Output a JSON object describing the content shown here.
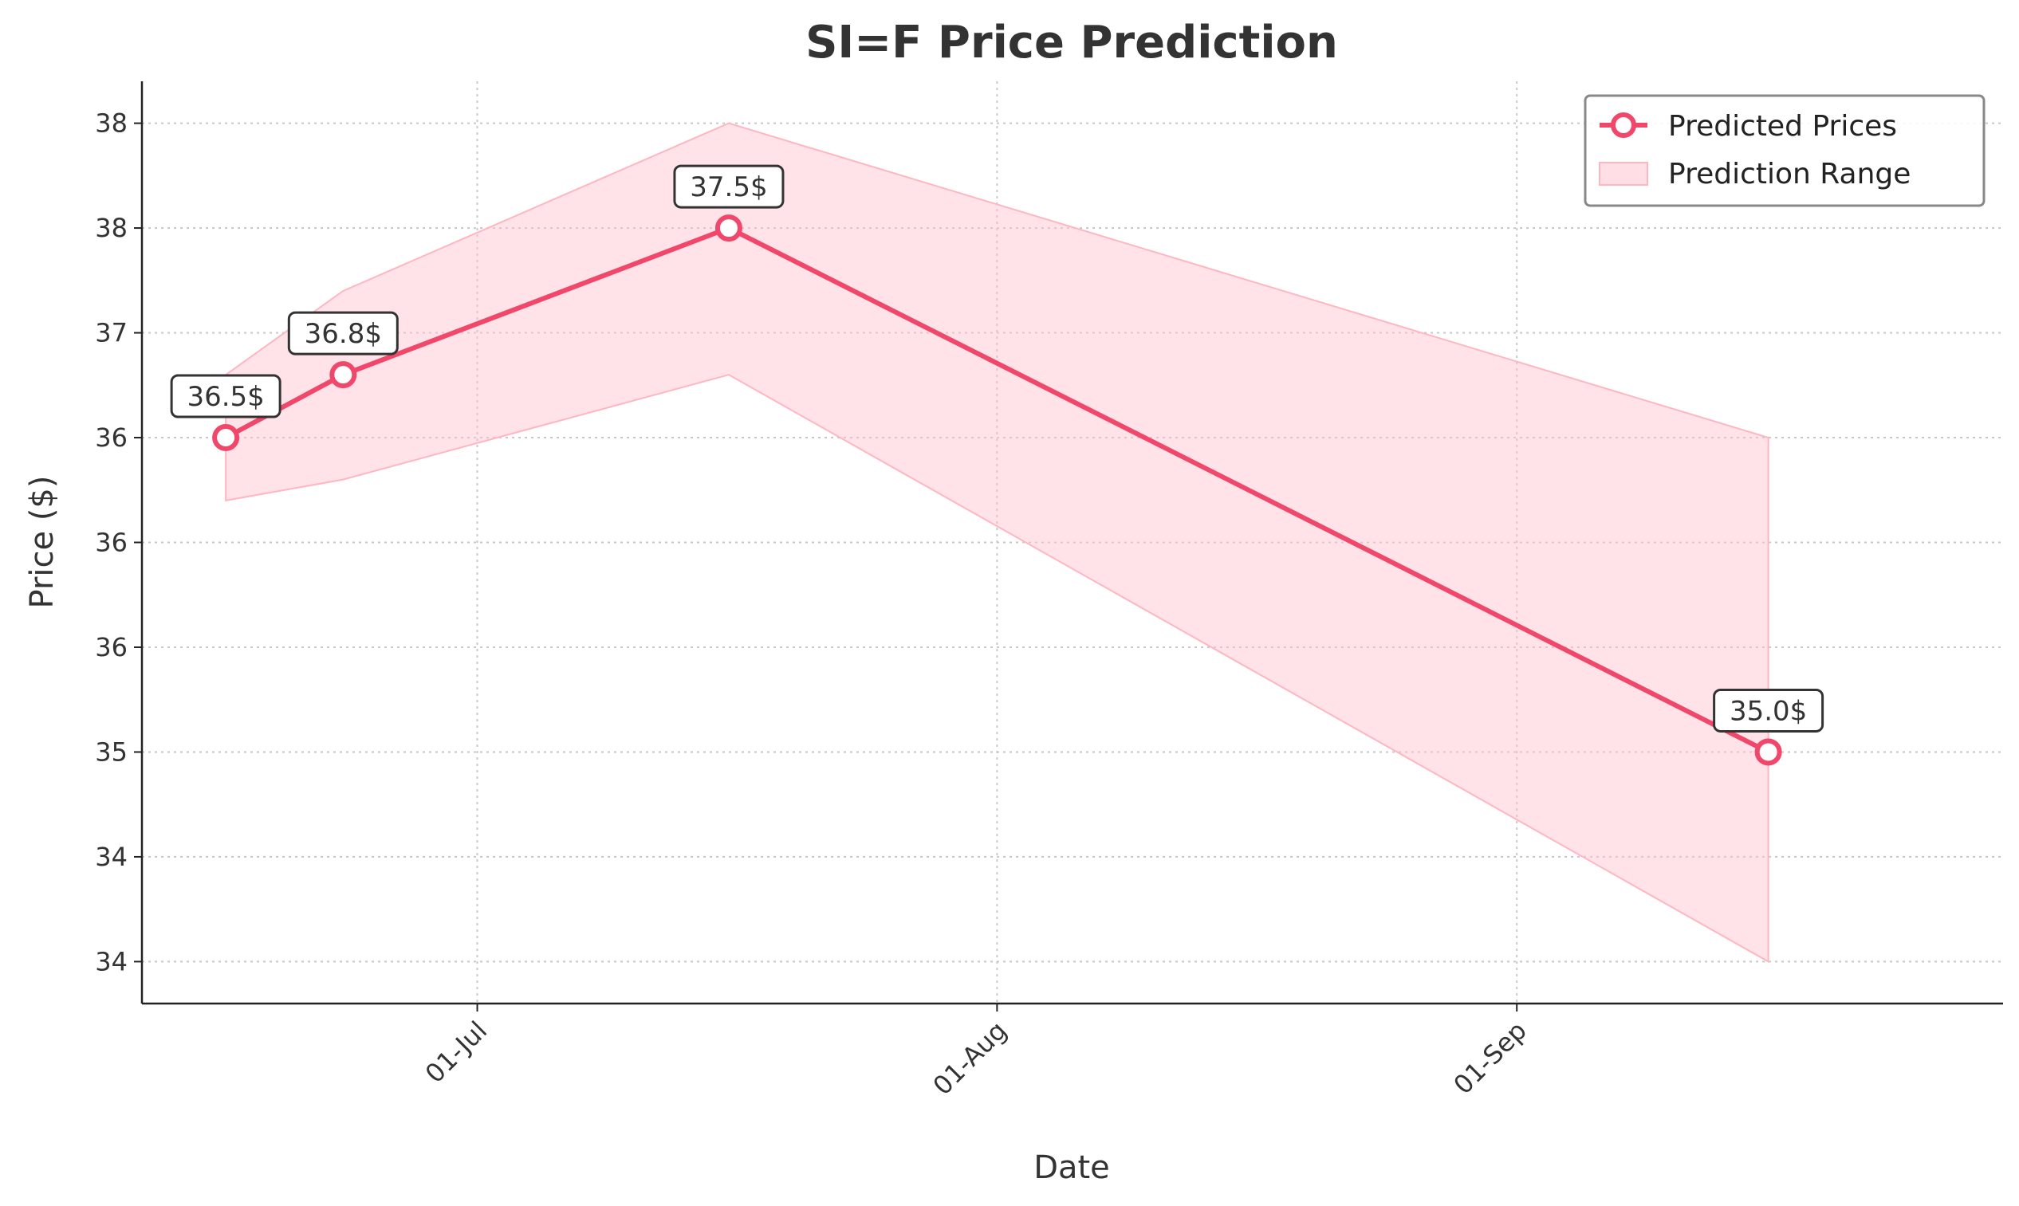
{
  "chart_data": {
    "type": "line",
    "title": "SI=F Price Prediction",
    "xlabel": "Date",
    "ylabel": "Price ($)",
    "x_tick_labels": [
      {
        "date": "2024-07-01",
        "label": "01-Jul"
      },
      {
        "date": "2024-08-01",
        "label": "01-Aug"
      },
      {
        "date": "2024-09-01",
        "label": "01-Sep"
      }
    ],
    "y_ticks": [
      {
        "value": 34.0,
        "label": "34"
      },
      {
        "value": 34.5,
        "label": "34"
      },
      {
        "value": 35.0,
        "label": "35"
      },
      {
        "value": 35.5,
        "label": "36"
      },
      {
        "value": 36.0,
        "label": "36"
      },
      {
        "value": 36.5,
        "label": "36"
      },
      {
        "value": 37.0,
        "label": "37"
      },
      {
        "value": 37.5,
        "label": "38"
      },
      {
        "value": 38.0,
        "label": "38"
      }
    ],
    "xlim": [
      "2024-06-11",
      "2024-09-30"
    ],
    "ylim": [
      33.8,
      38.2
    ],
    "grid": true,
    "legend_position": "top-right",
    "series": [
      {
        "name": "Predicted Prices",
        "color": "#f0476a",
        "points": [
          {
            "date": "2024-06-16",
            "value": 36.5,
            "label": "36.5$"
          },
          {
            "date": "2024-06-23",
            "value": 36.8,
            "label": "36.8$"
          },
          {
            "date": "2024-07-16",
            "value": 37.5,
            "label": "37.5$"
          },
          {
            "date": "2024-09-16",
            "value": 35.0,
            "label": "35.0$"
          }
        ]
      }
    ],
    "range": {
      "name": "Prediction Range",
      "color": "#ffc0cb",
      "points": [
        {
          "date": "2024-06-16",
          "low": 36.2,
          "high": 36.8
        },
        {
          "date": "2024-06-23",
          "low": 36.3,
          "high": 37.2
        },
        {
          "date": "2024-07-16",
          "low": 36.8,
          "high": 38.0
        },
        {
          "date": "2024-09-16",
          "low": 34.0,
          "high": 36.5
        }
      ]
    }
  }
}
